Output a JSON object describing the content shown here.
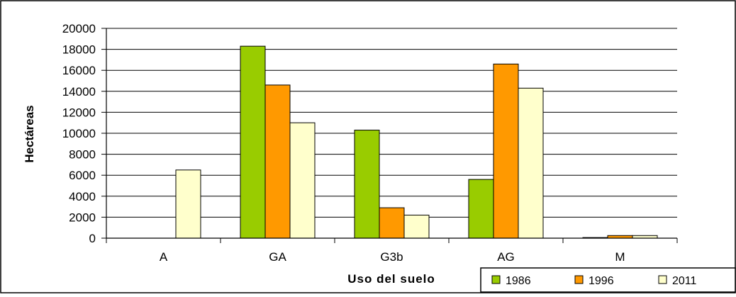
{
  "chart_data": {
    "type": "bar",
    "title": "",
    "xlabel": "Uso del suelo",
    "ylabel": "Hectáreas",
    "categories": [
      "A",
      "GA",
      "G3b",
      "AG",
      "M"
    ],
    "series": [
      {
        "name": "1986",
        "color": "#99cc00",
        "values": [
          0,
          18300,
          10300,
          5600,
          60
        ]
      },
      {
        "name": "1996",
        "color": "#ff9900",
        "values": [
          0,
          14600,
          2900,
          16600,
          250
        ]
      },
      {
        "name": "2011",
        "color": "#ffffcc",
        "values": [
          6500,
          11000,
          2200,
          14300,
          250
        ]
      }
    ],
    "ylim": [
      0,
      20000
    ],
    "yticks": [
      "0",
      "2000",
      "4000",
      "6000",
      "8000",
      "10000",
      "12000",
      "14000",
      "16000",
      "18000",
      "20000"
    ],
    "grid": true,
    "legend_position": "bottom-right"
  }
}
